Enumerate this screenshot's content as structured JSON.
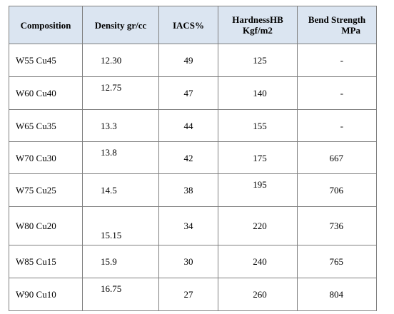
{
  "table": {
    "headers": {
      "composition": "Composition",
      "density": "Density gr/cc",
      "iacs": "IACS%",
      "hardness_line1": "HardnessHB",
      "hardness_line2": "Kgf/m2",
      "bend_line1": "Bend Strength",
      "bend_line2": "MPa"
    },
    "rows": [
      {
        "composition": "W55 Cu45",
        "density": "12.30",
        "iacs": "49",
        "hardness": "125",
        "bend": "-"
      },
      {
        "composition": "W60 Cu40",
        "density": "12.75",
        "iacs": "47",
        "hardness": "140",
        "bend": "-"
      },
      {
        "composition": "W65 Cu35",
        "density": "13.3",
        "iacs": "44",
        "hardness": "155",
        "bend": "-"
      },
      {
        "composition": "W70 Cu30",
        "density": "13.8",
        "iacs": "42",
        "hardness": "175",
        "bend": "667"
      },
      {
        "composition": "W75 Cu25",
        "density": "14.5",
        "iacs": "38",
        "hardness": "195",
        "bend": "706"
      },
      {
        "composition": "W80 Cu20",
        "density": "15.15",
        "iacs": "34",
        "hardness": "220",
        "bend": "736"
      },
      {
        "composition": "W85 Cu15",
        "density": "15.9",
        "iacs": "30",
        "hardness": "240",
        "bend": "765"
      },
      {
        "composition": "W90 Cu10",
        "density": "16.75",
        "iacs": "27",
        "hardness": "260",
        "bend": "804"
      }
    ]
  }
}
